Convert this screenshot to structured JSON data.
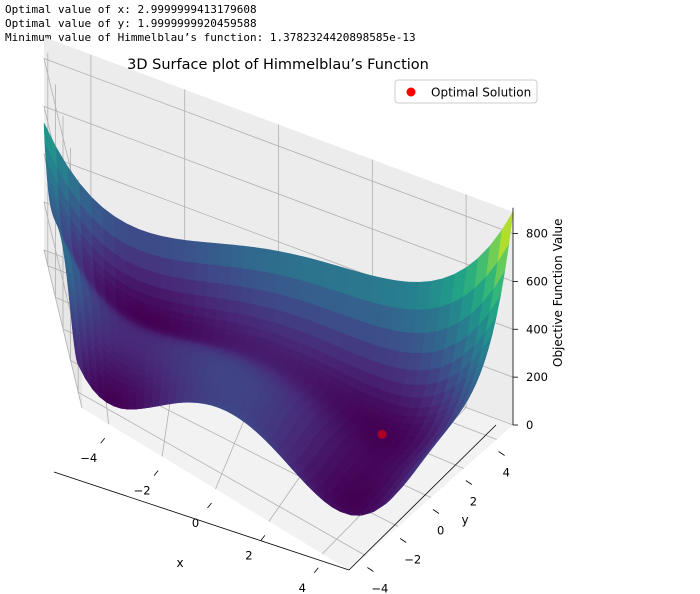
{
  "output_lines": [
    "Optimal value of x: 2.9999999413179608",
    "Optimal value of y: 1.9999999920459588",
    "Minimum value of Himmelblau’s function: 1.3782324420898585e-13"
  ],
  "chart_data": {
    "type": "surface3d",
    "title": "3D Surface plot of Himmelblau’s Function",
    "xlabel": "x",
    "ylabel": "y",
    "zlabel": "Objective Function Value",
    "function": "(x^2 + y - 11)^2 + (x + y^2 - 7)^2",
    "xlim": [
      -5,
      5
    ],
    "ylim": [
      -5,
      5
    ],
    "zlim": [
      0,
      890
    ],
    "xticks": [
      -4,
      -2,
      0,
      2,
      4
    ],
    "yticks": [
      -4,
      -2,
      0,
      2,
      4
    ],
    "zticks": [
      0,
      200,
      400,
      600,
      800
    ],
    "colormap": "viridis",
    "grid": true,
    "legend": {
      "entries": [
        "Optimal Solution"
      ],
      "position": "top-right"
    },
    "optimal_point": {
      "x": 3.0,
      "y": 2.0,
      "z": 0.0,
      "color": "#ff0000",
      "label": "Optimal Solution"
    }
  }
}
